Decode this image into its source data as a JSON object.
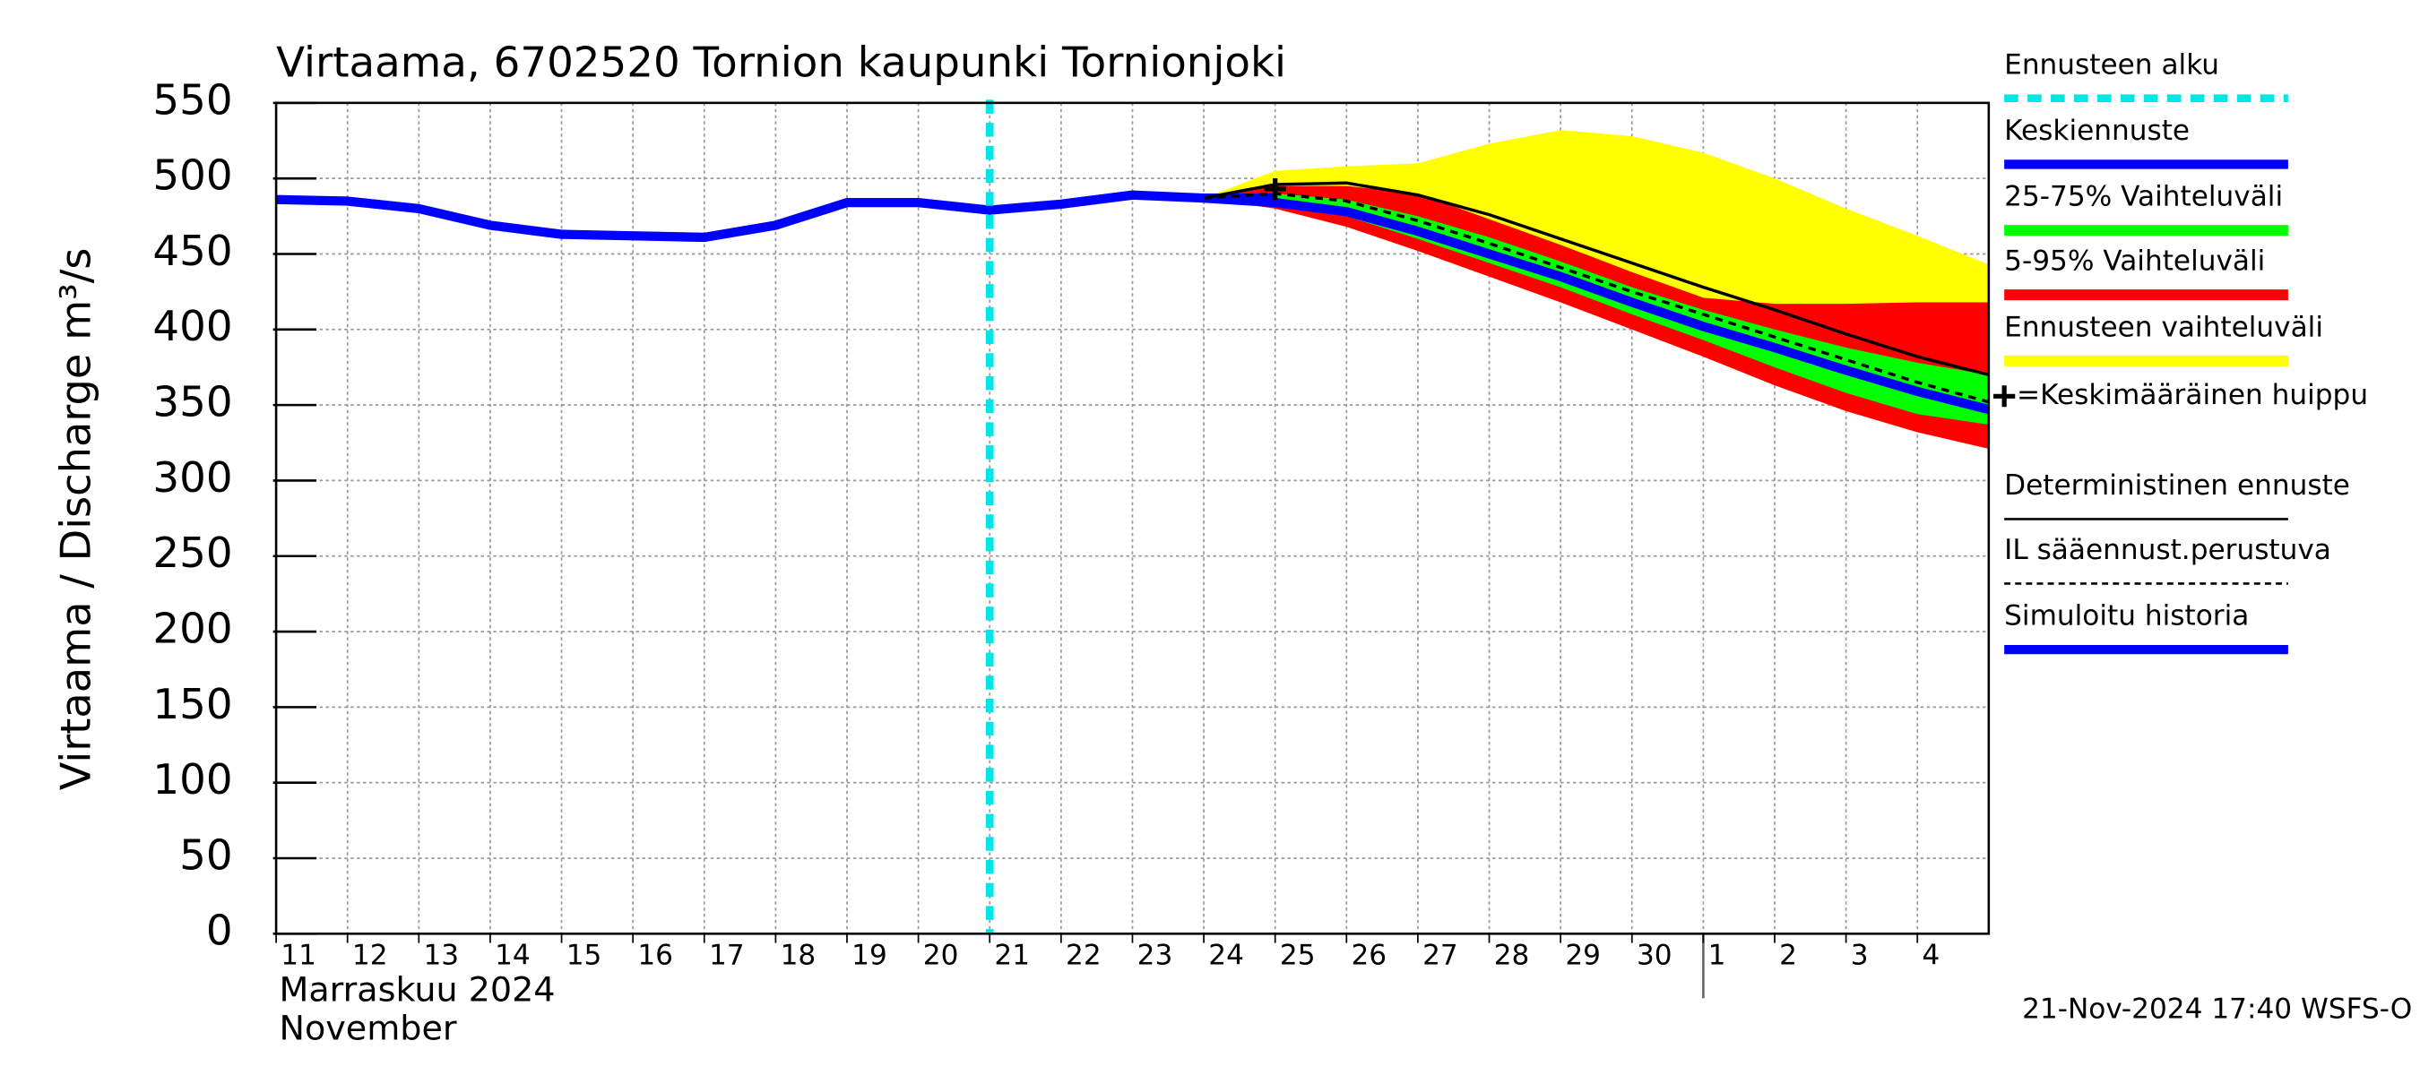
{
  "chart_data": {
    "type": "line",
    "title": "Virtaama, 6702520 Tornion kaupunki Tornionjoki",
    "y_label": "Virtaama / Discharge    m³/s",
    "x_label_lines": [
      "Marraskuu 2024",
      "November"
    ],
    "timestamp": "21-Nov-2024 17:40 WSFS-O",
    "xlim": [
      0,
      24
    ],
    "xticks": [
      {
        "value": 0,
        "label": "11"
      },
      {
        "value": 1,
        "label": "12"
      },
      {
        "value": 2,
        "label": "13"
      },
      {
        "value": 3,
        "label": "14"
      },
      {
        "value": 4,
        "label": "15"
      },
      {
        "value": 5,
        "label": "16"
      },
      {
        "value": 6,
        "label": "17"
      },
      {
        "value": 7,
        "label": "18"
      },
      {
        "value": 8,
        "label": "19"
      },
      {
        "value": 9,
        "label": "20"
      },
      {
        "value": 10,
        "label": "21"
      },
      {
        "value": 11,
        "label": "22"
      },
      {
        "value": 12,
        "label": "23"
      },
      {
        "value": 13,
        "label": "24"
      },
      {
        "value": 14,
        "label": "25"
      },
      {
        "value": 15,
        "label": "26"
      },
      {
        "value": 16,
        "label": "27"
      },
      {
        "value": 17,
        "label": "28"
      },
      {
        "value": 18,
        "label": "29"
      },
      {
        "value": 19,
        "label": "30"
      },
      {
        "value": 20,
        "label": "1"
      },
      {
        "value": 21,
        "label": "2"
      },
      {
        "value": 22,
        "label": "3"
      },
      {
        "value": 23,
        "label": "4"
      }
    ],
    "ylim": [
      0,
      550
    ],
    "yticks": [
      0,
      50,
      100,
      150,
      200,
      250,
      300,
      350,
      400,
      450,
      500,
      550
    ],
    "grid": true,
    "forecast_start": {
      "name": "Ennusteen alku",
      "x": 10,
      "color": "#00e5e5"
    },
    "bands": [
      {
        "name": "Ennusteen vaihteluväli",
        "color": "#ffff00",
        "x": [
          13,
          14,
          15,
          16,
          17,
          18,
          19,
          20,
          21,
          22,
          23,
          24
        ],
        "upper": [
          487,
          505,
          508,
          510,
          523,
          532,
          528,
          517,
          500,
          480,
          462,
          443
        ],
        "lower": [
          487,
          480,
          468,
          452,
          435,
          418,
          400,
          382,
          363,
          346,
          332,
          321
        ]
      },
      {
        "name": "5-95% Vaihteluväli",
        "color": "#ff0000",
        "x": [
          13,
          14,
          15,
          16,
          17,
          18,
          19,
          20,
          21,
          22,
          23,
          24
        ],
        "upper": [
          487,
          495,
          495,
          490,
          473,
          456,
          438,
          421,
          417,
          417,
          418,
          418
        ],
        "lower": [
          487,
          480,
          468,
          452,
          435,
          418,
          400,
          382,
          363,
          346,
          332,
          321
        ]
      },
      {
        "name": "25-75% Vaihteluväli",
        "color": "#00ff00",
        "x": [
          13,
          14,
          15,
          16,
          17,
          18,
          19,
          20,
          21,
          22,
          23,
          24
        ],
        "upper": [
          487,
          490,
          486,
          475,
          461,
          445,
          428,
          413,
          400,
          388,
          378,
          370
        ],
        "lower": [
          487,
          482,
          475,
          460,
          444,
          428,
          410,
          393,
          375,
          358,
          344,
          337
        ]
      }
    ],
    "series": [
      {
        "name": "Simuloitu historia",
        "color": "#0000ff",
        "style": "solid",
        "width": 6,
        "x": [
          0,
          1,
          2,
          3,
          4,
          5,
          6,
          7,
          8,
          9,
          10,
          11,
          12,
          13,
          14
        ],
        "values": [
          486,
          485,
          480,
          469,
          463,
          462,
          461,
          469,
          484,
          484,
          479,
          483,
          489,
          487,
          487
        ]
      },
      {
        "name": "Keskiennuste",
        "color": "#0000ff",
        "style": "solid",
        "width": 6,
        "x": [
          13,
          14,
          15,
          16,
          17,
          18,
          19,
          20,
          21,
          22,
          23,
          24
        ],
        "values": [
          487,
          484,
          478,
          465,
          450,
          435,
          418,
          402,
          388,
          373,
          359,
          347
        ]
      },
      {
        "name": "Deterministinen ennuste",
        "color": "#000000",
        "style": "solid",
        "width": 2,
        "x": [
          13,
          14,
          15,
          16,
          17,
          18,
          19,
          20,
          21,
          22,
          23,
          24
        ],
        "values": [
          487,
          496,
          497,
          489,
          476,
          460,
          444,
          428,
          413,
          397,
          382,
          370
        ]
      },
      {
        "name": "IL sääennust.perustuva",
        "color": "#000000",
        "style": "dashed",
        "width": 2,
        "x": [
          13,
          14,
          15,
          16,
          17,
          18,
          19,
          20,
          21,
          22,
          23,
          24
        ],
        "values": [
          487,
          490,
          485,
          472,
          457,
          441,
          425,
          410,
          395,
          380,
          365,
          352
        ]
      }
    ],
    "peak": {
      "name": "=Keskimääräinen huippu",
      "x": 14,
      "value": 493,
      "color": "#000000"
    }
  }
}
